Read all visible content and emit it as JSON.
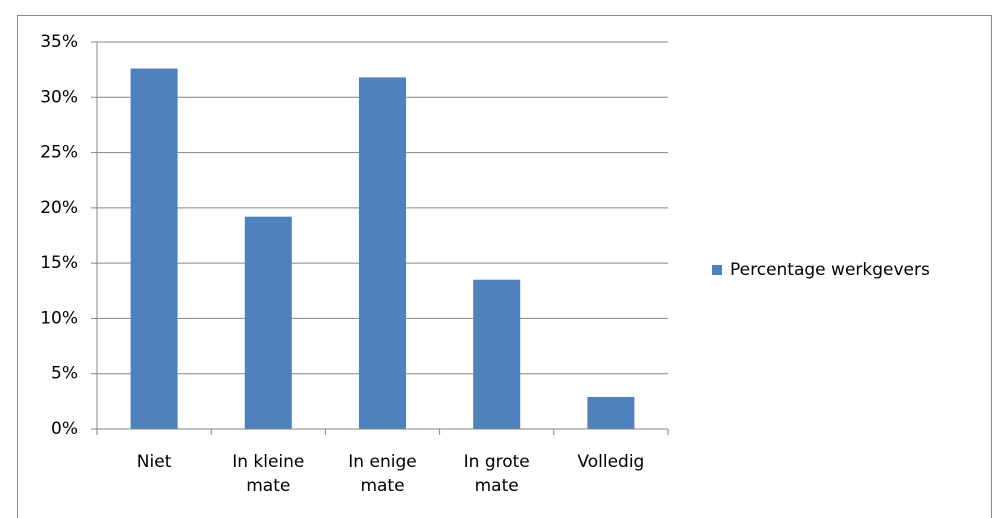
{
  "chart_data": {
    "type": "bar",
    "categories": [
      "Niet",
      "In kleine mate",
      "In enige mate",
      "In grote mate",
      "Volledig"
    ],
    "series": [
      {
        "name": "Percentage werkgevers",
        "color": "#4f81bd",
        "values": [
          32.6,
          19.2,
          31.8,
          13.5,
          2.9
        ]
      }
    ],
    "ylim": [
      0,
      35
    ],
    "yticks": [
      {
        "value": 0,
        "label": "0%"
      },
      {
        "value": 5,
        "label": "5%"
      },
      {
        "value": 10,
        "label": "10%"
      },
      {
        "value": 15,
        "label": "15%"
      },
      {
        "value": 20,
        "label": "20%"
      },
      {
        "value": 25,
        "label": "25%"
      },
      {
        "value": 30,
        "label": "30%"
      },
      {
        "value": 35,
        "label": "35%"
      }
    ],
    "grid": true,
    "legend": "right"
  }
}
